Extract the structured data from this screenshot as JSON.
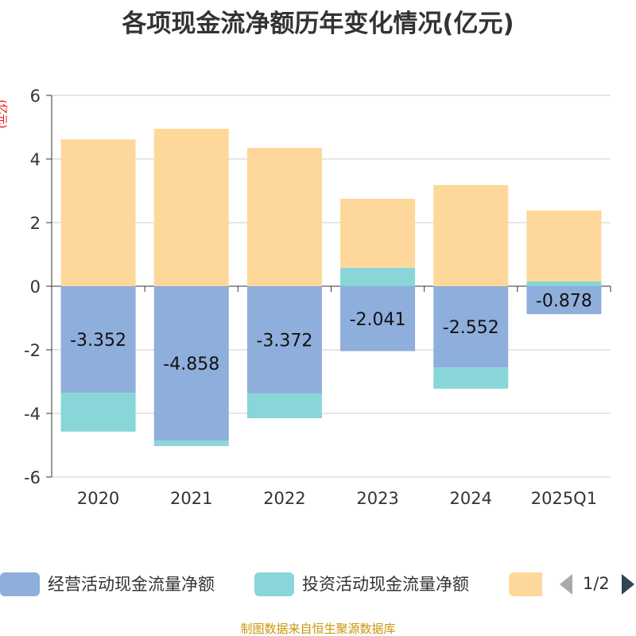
{
  "title": "各项现金流净额历年变化情况(亿元)",
  "unit": "(亿元)",
  "source": "制图数据来自恒生聚源数据库",
  "legend": {
    "page": "1/2",
    "prev_icon": "triangle-left",
    "next_icon": "triangle-right"
  },
  "chart_data": {
    "type": "bar",
    "stacked": true,
    "title": "各项现金流净额历年变化情况(亿元)",
    "ylabel": "(亿元)",
    "ylim": [
      -6,
      6
    ],
    "yticks": [
      "6",
      "4",
      "2",
      "0",
      "-2",
      "-4",
      "-6"
    ],
    "categories": [
      "2020",
      "2021",
      "2022",
      "2023",
      "2024",
      "2025Q1"
    ],
    "series": [
      {
        "name": "经营活动现金流量净额",
        "color": "#8eaedb",
        "values": [
          -3.352,
          -4.858,
          -3.372,
          -2.041,
          -2.552,
          -0.878
        ],
        "labels": [
          "-3.352",
          "-4.858",
          "-3.372",
          "-2.041",
          "-2.552",
          "-0.878"
        ]
      },
      {
        "name": "投资活动现金流量净额",
        "color": "#88d6d8",
        "values": [
          -1.22,
          -0.17,
          -0.78,
          0.58,
          -0.67,
          0.15
        ]
      },
      {
        "color": "#fed89a",
        "values": [
          4.62,
          4.95,
          4.35,
          2.17,
          3.18,
          2.23
        ]
      }
    ]
  }
}
